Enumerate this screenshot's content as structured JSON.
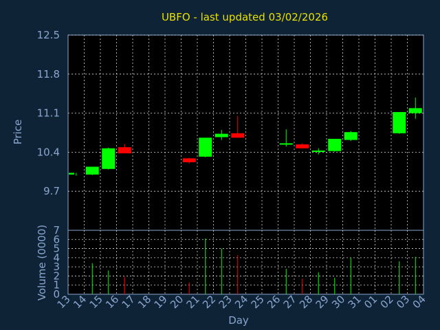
{
  "chart_data": {
    "type": "candlestick",
    "title": "UBFO - last updated 03/02/2026",
    "xlabel": "Day",
    "price_ylabel": "Price",
    "volume_ylabel": "Volume (0000)",
    "price_ylim": [
      9.0,
      12.5
    ],
    "price_ticks": [
      "12.5",
      "11.8",
      "11.1",
      "10.4",
      "9.7"
    ],
    "volume_ylim": [
      0,
      7
    ],
    "volume_ticks": [
      "7",
      "6",
      "5",
      "4",
      "3",
      "2",
      "1",
      "0"
    ],
    "x_ticks": [
      "13",
      "14",
      "15",
      "16",
      "17",
      "18",
      "19",
      "20",
      "21",
      "22",
      "23",
      "24",
      "25",
      "26",
      "27",
      "28",
      "29",
      "30",
      "31",
      "01",
      "02",
      "03",
      "04"
    ],
    "grid": true,
    "colors": {
      "background": "#0f2337",
      "up": "#00ff00",
      "down": "#ff0000",
      "grid": "#d8d8d8",
      "tick": "#8aa7d0",
      "title": "#e8e000"
    },
    "candles": [
      {
        "x": 0,
        "open": 10.0,
        "high": 10.03,
        "low": 9.98,
        "close": 10.03,
        "volume": 0
      },
      {
        "x": 1,
        "open": 10.0,
        "high": 10.14,
        "low": 9.99,
        "close": 10.14,
        "volume": 3.4
      },
      {
        "x": 2,
        "open": 10.1,
        "high": 10.48,
        "low": 10.09,
        "close": 10.47,
        "volume": 2.6
      },
      {
        "x": 3,
        "open": 10.49,
        "high": 10.55,
        "low": 10.38,
        "close": 10.38,
        "volume": 1.9
      },
      {
        "x": 7,
        "open": 10.29,
        "high": 10.3,
        "low": 10.2,
        "close": 10.22,
        "volume": 1.3
      },
      {
        "x": 8,
        "open": 10.32,
        "high": 10.66,
        "low": 10.31,
        "close": 10.66,
        "volume": 6.1
      },
      {
        "x": 9,
        "open": 10.67,
        "high": 10.8,
        "low": 10.62,
        "close": 10.73,
        "volume": 5.0
      },
      {
        "x": 10,
        "open": 10.74,
        "high": 11.05,
        "low": 10.66,
        "close": 10.66,
        "volume": 4.3
      },
      {
        "x": 13,
        "open": 10.54,
        "high": 10.81,
        "low": 10.5,
        "close": 10.56,
        "volume": 2.8
      },
      {
        "x": 14,
        "open": 10.54,
        "high": 10.56,
        "low": 10.47,
        "close": 10.47,
        "volume": 1.7
      },
      {
        "x": 15,
        "open": 10.41,
        "high": 10.47,
        "low": 10.36,
        "close": 10.43,
        "volume": 2.4
      },
      {
        "x": 16,
        "open": 10.42,
        "high": 10.64,
        "low": 10.41,
        "close": 10.64,
        "volume": 1.8
      },
      {
        "x": 17,
        "open": 10.62,
        "high": 10.78,
        "low": 10.6,
        "close": 10.76,
        "volume": 4.0
      },
      {
        "x": 20,
        "open": 10.74,
        "high": 11.12,
        "low": 10.73,
        "close": 11.12,
        "volume": 3.6
      },
      {
        "x": 21,
        "open": 11.1,
        "high": 11.38,
        "low": 11.0,
        "close": 11.19,
        "volume": 4.1
      }
    ]
  }
}
